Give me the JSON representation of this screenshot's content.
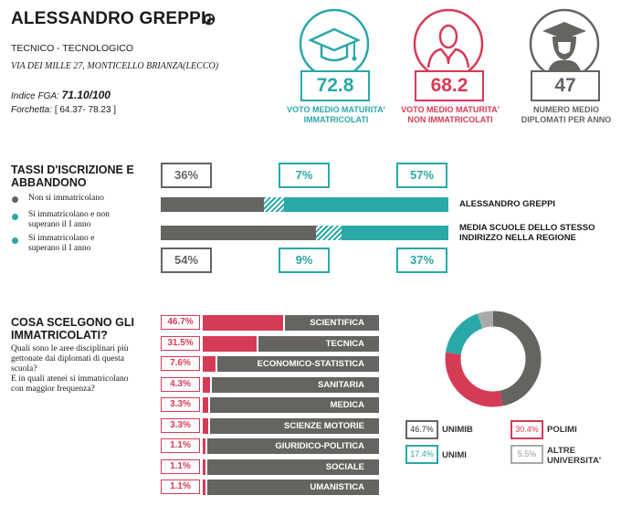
{
  "school": {
    "name": "ALESSANDRO GREPPI",
    "type": "TECNICO - TECNOLOGICO",
    "address": "VIA DEI MILLE 27, MONTICELLO BRIANZA(LECCO)",
    "fga_label": "Indice FGA:",
    "fga_value": "71.10/100",
    "forchetta_label": "Forchetta:",
    "forchetta_value": "[ 64.37- 78.23 ]"
  },
  "kpis": [
    {
      "value": "72.8",
      "label1": "VOTO MEDIO MATURITA'",
      "label2": "IMMATRICOLATI",
      "color": "#2aa8a8",
      "icon": "graduation-cap-icon"
    },
    {
      "value": "68.2",
      "label1": "VOTO MEDIO MATURITA'",
      "label2": "NON IMMATRICOLATI",
      "color": "#d63b55",
      "icon": "person-icon"
    },
    {
      "value": "47",
      "label1": "NUMERO MEDIO",
      "label2": "DIPLOMATI PER ANNO",
      "color": "#666461",
      "icon": "graduate-person-icon"
    }
  ],
  "tassi": {
    "title1": "TASSI D'ISCRIZIONE E",
    "title2": "ABBANDONO",
    "legend": [
      {
        "text1": "Non si immatricolano",
        "text2": "",
        "color": "#666461"
      },
      {
        "text1": "Si immatricolano e non",
        "text2": "superano il I anno",
        "color": "#2aa8a8"
      },
      {
        "text1": "Si immatricolano e",
        "text2": "superano il I anno",
        "color": "#2aa8a8"
      }
    ],
    "school_row": {
      "label1": "ALESSANDRO GREPPI",
      "label2": "",
      "not_enrolled": 36,
      "dropout": 7,
      "continue": 57
    },
    "region_row": {
      "label1": "MEDIA SCUOLE DELLO STESSO",
      "label2": "INDIRIZZO NELLA REGIONE",
      "not_enrolled": 54,
      "dropout": 9,
      "continue": 37
    },
    "top_pcts": [
      "36%",
      "7%",
      "57%"
    ],
    "bottom_pcts": [
      "54%",
      "9%",
      "37%"
    ]
  },
  "areas": {
    "title1": "COSA SCELGONO GLI",
    "title2": "IMMATRICOLATI?",
    "question": [
      "Quali sono le aree disciplinari più",
      "gettonate dai diplomati di questa",
      "scuola?",
      "E in quali atenei si immatricolano",
      "con maggior frequenza?"
    ],
    "items": [
      {
        "pct": "46.7%",
        "value": 46.7,
        "name": "SCIENTIFICA"
      },
      {
        "pct": "31.5%",
        "value": 31.5,
        "name": "TECNICA"
      },
      {
        "pct": "7.6%",
        "value": 7.6,
        "name": "ECONOMICO-STATISTICA"
      },
      {
        "pct": "4.3%",
        "value": 4.3,
        "name": "SANITARIA"
      },
      {
        "pct": "3.3%",
        "value": 3.3,
        "name": "MEDICA"
      },
      {
        "pct": "3.3%",
        "value": 3.3,
        "name": "SCIENZE MOTORIE"
      },
      {
        "pct": "1.1%",
        "value": 1.1,
        "name": "GIURIDICO-POLITICA"
      },
      {
        "pct": "1.1%",
        "value": 1.1,
        "name": "SOCIALE"
      },
      {
        "pct": "1.1%",
        "value": 1.1,
        "name": "UMANISTICA"
      }
    ]
  },
  "chart_data": {
    "type": "pie",
    "categories": [
      "UNIMIB",
      "POLIMI",
      "UNIMI",
      "ALTRE UNIVERSITA'"
    ],
    "values": [
      46.7,
      30.4,
      17.4,
      5.5
    ],
    "labels": [
      "46.7%",
      "30.4%",
      "17.4%",
      "5.5%"
    ],
    "colors": [
      "#666461",
      "#d63b55",
      "#2aa8a8",
      "#aaaaaa"
    ],
    "legend": [
      {
        "pct": "46.7%",
        "name1": "UNIMIB",
        "name2": "",
        "color": "#666461"
      },
      {
        "pct": "30.4%",
        "name1": "POLIMI",
        "name2": "",
        "color": "#d63b55"
      },
      {
        "pct": "17.4%",
        "name1": "UNIMI",
        "name2": "",
        "color": "#2aa8a8"
      },
      {
        "pct": "5.5%",
        "name1": "ALTRE",
        "name2": "UNIVERSITA'",
        "color": "#aaaaaa"
      }
    ]
  }
}
